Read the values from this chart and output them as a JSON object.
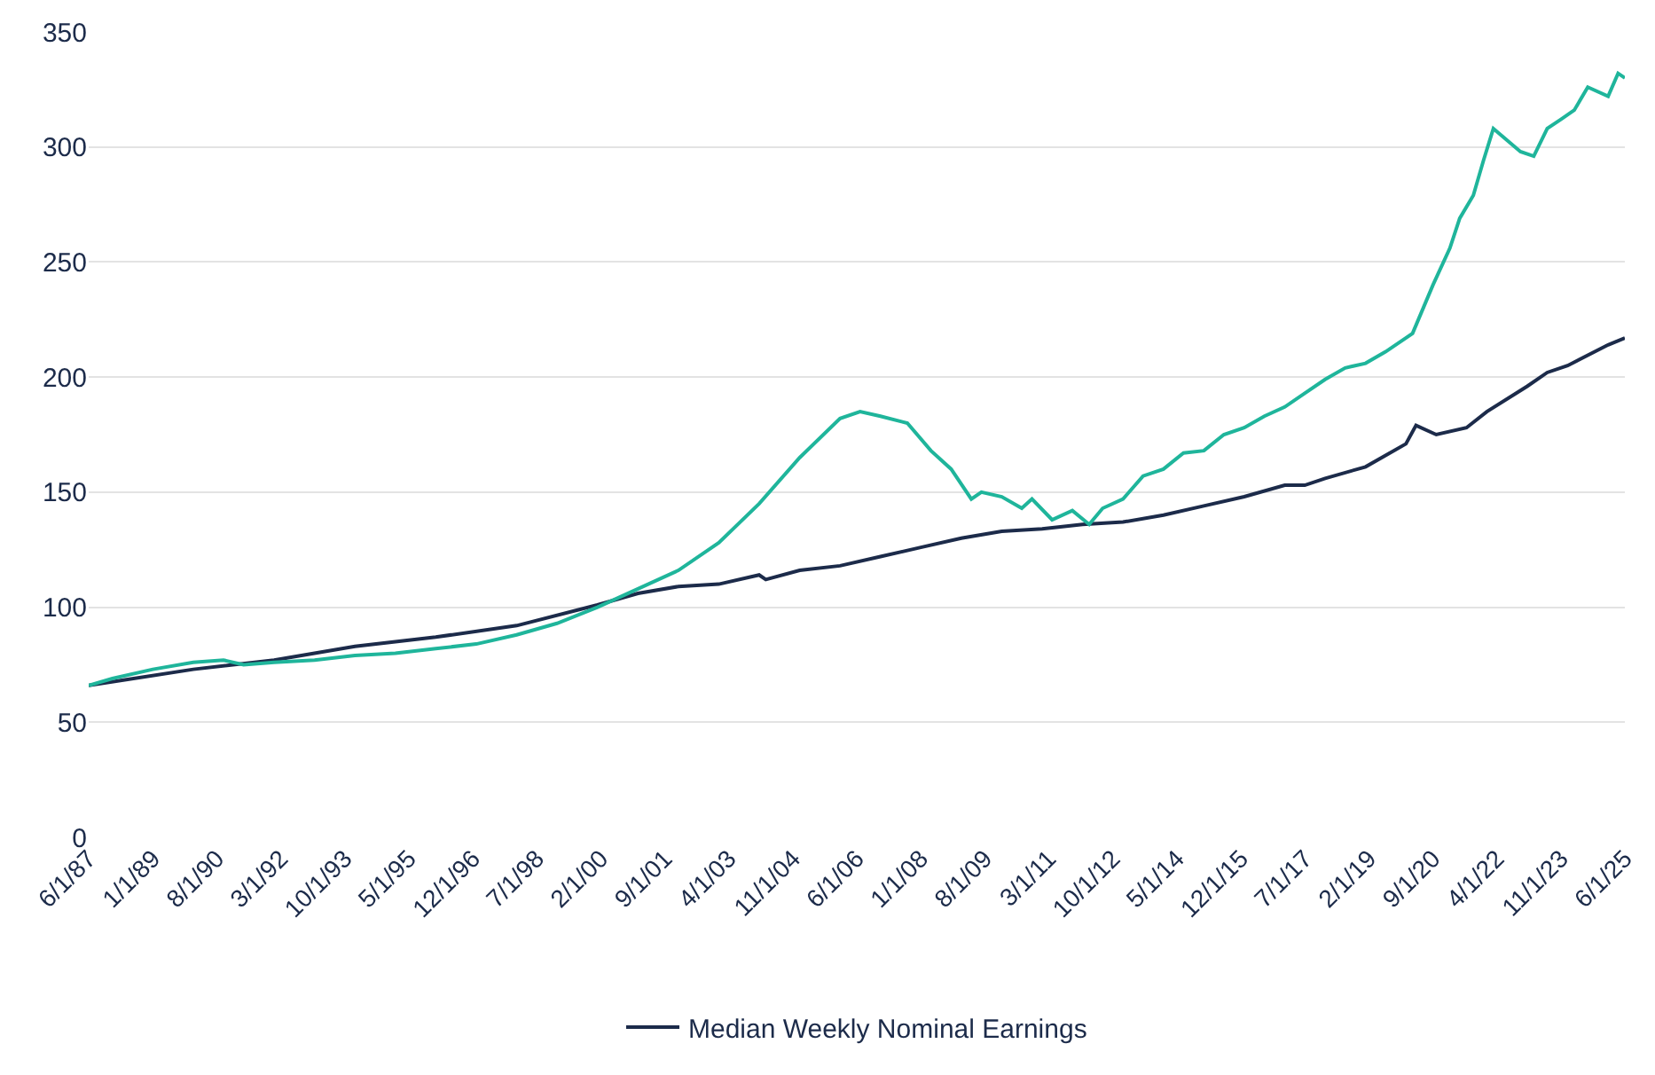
{
  "chart_data": {
    "type": "line",
    "xlim": [
      "1987-06-01",
      "2025-06-01"
    ],
    "xticks": [
      {
        "value": "1987-06-01",
        "label": "6/1/87"
      },
      {
        "value": "1989-01-01",
        "label": "1/1/89"
      },
      {
        "value": "1990-08-01",
        "label": "8/1/90"
      },
      {
        "value": "1992-03-01",
        "label": "3/1/92"
      },
      {
        "value": "1993-10-01",
        "label": "10/1/93"
      },
      {
        "value": "1995-05-01",
        "label": "5/1/95"
      },
      {
        "value": "1996-12-01",
        "label": "12/1/96"
      },
      {
        "value": "1998-07-01",
        "label": "7/1/98"
      },
      {
        "value": "2000-02-01",
        "label": "2/1/00"
      },
      {
        "value": "2001-09-01",
        "label": "9/1/01"
      },
      {
        "value": "2003-04-01",
        "label": "4/1/03"
      },
      {
        "value": "2004-11-01",
        "label": "11/1/04"
      },
      {
        "value": "2006-06-01",
        "label": "6/1/06"
      },
      {
        "value": "2008-01-01",
        "label": "1/1/08"
      },
      {
        "value": "2009-08-01",
        "label": "8/1/09"
      },
      {
        "value": "2011-03-01",
        "label": "3/1/11"
      },
      {
        "value": "2012-10-01",
        "label": "10/1/12"
      },
      {
        "value": "2014-05-01",
        "label": "5/1/14"
      },
      {
        "value": "2015-12-01",
        "label": "12/1/15"
      },
      {
        "value": "2017-07-01",
        "label": "7/1/17"
      },
      {
        "value": "2019-02-01",
        "label": "2/1/19"
      },
      {
        "value": "2020-09-01",
        "label": "9/1/20"
      },
      {
        "value": "2022-04-01",
        "label": "4/1/22"
      },
      {
        "value": "2023-11-01",
        "label": "11/1/23"
      },
      {
        "value": "2025-06-01",
        "label": "6/1/25"
      }
    ],
    "ylim": [
      0,
      350
    ],
    "yticks": [
      0,
      50,
      100,
      150,
      200,
      250,
      300,
      350
    ],
    "grid": "y",
    "legend": "bottom",
    "marker": "none",
    "line_style": "solid",
    "series": [
      {
        "name": "Median Weekly Nominal Earnings",
        "color": "#1c2b4a",
        "x": [
          "1987-06",
          "1990-01",
          "1992-01",
          "1994-01",
          "1996-01",
          "1998-01",
          "2000-01",
          "2001-01",
          "2002-01",
          "2003-01",
          "2004-01",
          "2004-03",
          "2005-01",
          "2006-01",
          "2007-01",
          "2008-01",
          "2009-01",
          "2010-01",
          "2011-01",
          "2012-01",
          "2013-01",
          "2014-01",
          "2015-01",
          "2016-01",
          "2017-01",
          "2017-07",
          "2018-01",
          "2019-01",
          "2020-01",
          "2020-04",
          "2020-10",
          "2021-07",
          "2022-01",
          "2023-01",
          "2023-07",
          "2024-01",
          "2025-01",
          "2025-06"
        ],
        "values": [
          66,
          73,
          77,
          83,
          87,
          92,
          101,
          106,
          109,
          110,
          114,
          112,
          116,
          118,
          122,
          126,
          130,
          133,
          134,
          136,
          137,
          140,
          144,
          148,
          153,
          153,
          156,
          161,
          171,
          179,
          175,
          178,
          185,
          196,
          202,
          205,
          214,
          217
        ]
      },
      {
        "color": "#1fb59b",
        "x": [
          "1987-06",
          "1988-01",
          "1989-01",
          "1990-01",
          "1990-10",
          "1991-04",
          "1992-01",
          "1993-01",
          "1994-01",
          "1995-01",
          "1996-01",
          "1997-01",
          "1998-01",
          "1999-01",
          "2000-01",
          "2001-01",
          "2002-01",
          "2003-01",
          "2004-01",
          "2005-01",
          "2006-01",
          "2006-07",
          "2007-01",
          "2007-09",
          "2008-04",
          "2008-10",
          "2009-04",
          "2009-07",
          "2010-01",
          "2010-07",
          "2010-10",
          "2011-04",
          "2011-10",
          "2012-03",
          "2012-07",
          "2013-01",
          "2013-07",
          "2014-01",
          "2014-07",
          "2015-01",
          "2015-07",
          "2016-01",
          "2016-07",
          "2017-01",
          "2017-07",
          "2018-01",
          "2018-07",
          "2019-01",
          "2019-07",
          "2020-03",
          "2020-09",
          "2021-02",
          "2021-05",
          "2021-09",
          "2021-12",
          "2022-03",
          "2022-11",
          "2023-03",
          "2023-07",
          "2023-11",
          "2024-03",
          "2024-07",
          "2025-01",
          "2025-04",
          "2025-06"
        ],
        "values": [
          66,
          69,
          73,
          76,
          77,
          75,
          76,
          77,
          79,
          80,
          82,
          84,
          88,
          93,
          100,
          108,
          116,
          128,
          145,
          165,
          182,
          185,
          183,
          180,
          168,
          160,
          147,
          150,
          148,
          143,
          147,
          138,
          142,
          136,
          143,
          147,
          157,
          160,
          167,
          168,
          175,
          178,
          183,
          187,
          193,
          199,
          204,
          206,
          211,
          219,
          240,
          256,
          269,
          279,
          294,
          308,
          298,
          296,
          308,
          312,
          316,
          326,
          322,
          332,
          330
        ]
      }
    ]
  }
}
